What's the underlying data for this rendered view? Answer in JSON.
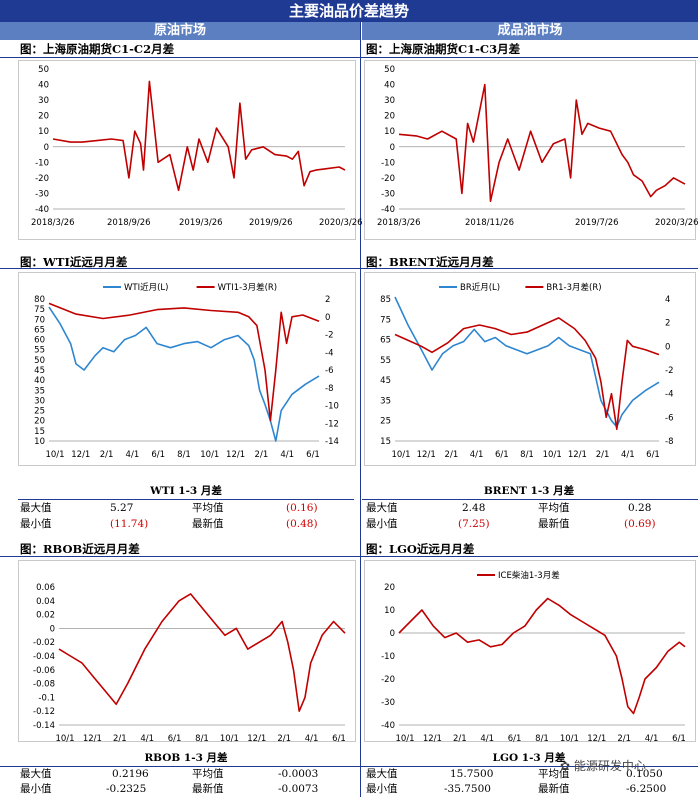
{
  "header": {
    "title": "主要油品价差趋势",
    "left": "原油市场",
    "right": "成品油市场"
  },
  "sections": {
    "s1": "图：上海原油期货C1-C2月差",
    "s2": "图：上海原油期货C1-C3月差",
    "s3": "图：WTI近远月月差",
    "s4": "图：BRENT近远月月差",
    "s5": "图：RBOB近远月月差",
    "s6": "图：LGO近远月月差"
  },
  "stats": {
    "wti": {
      "title": "WTI 1-3 月差",
      "max_label": "最大值",
      "max": "5.27",
      "min_label": "最小值",
      "min": "(11.74)",
      "avg_label": "平均值",
      "avg": "(0.16)",
      "latest_label": "最新值",
      "latest": "(0.48)"
    },
    "brent": {
      "title": "BRENT 1-3 月差",
      "max_label": "最大值",
      "max": "2.48",
      "min_label": "最小值",
      "min": "(7.25)",
      "avg_label": "平均值",
      "avg": "0.28",
      "latest_label": "最新值",
      "latest": "(0.69)"
    },
    "rbob": {
      "title": "RBOB 1-3 月差",
      "max_label": "最大值",
      "max": "0.2196",
      "min_label": "最小值",
      "min": "-0.2325",
      "avg_label": "平均值",
      "avg": "-0.0003",
      "latest_label": "最新值",
      "latest": "-0.0073"
    },
    "lgo": {
      "title": "LGO 1-3 月差",
      "max_label": "最大值",
      "max": "15.7500",
      "min_label": "最小值",
      "min": "-35.7500",
      "avg_label": "平均值",
      "avg": "0.1050",
      "latest_label": "最新值",
      "latest": "-6.2500"
    }
  },
  "watermark": "能源研发中心",
  "colors": {
    "banner": "#1f3a93",
    "subheader": "#5b7fc0",
    "red": "#c00000",
    "blue": "#2e86d0"
  },
  "chart_data": [
    {
      "id": "c1",
      "type": "line",
      "x_ticks": [
        "2018/3/26",
        "2018/9/26",
        "2019/3/26",
        "2019/9/26",
        "2020/3/26"
      ],
      "y_ticks": [
        50,
        40,
        30,
        20,
        10,
        0,
        -10,
        -20,
        -30,
        -40
      ],
      "ylim": [
        -40,
        50
      ],
      "series": [
        {
          "color": "#c00000",
          "x": [
            0,
            0.06,
            0.1,
            0.15,
            0.2,
            0.24,
            0.26,
            0.28,
            0.3,
            0.31,
            0.33,
            0.36,
            0.4,
            0.43,
            0.46,
            0.48,
            0.5,
            0.53,
            0.56,
            0.6,
            0.62,
            0.64,
            0.66,
            0.68,
            0.72,
            0.76,
            0.8,
            0.82,
            0.84,
            0.86,
            0.88,
            0.9,
            0.94,
            0.98,
            1
          ],
          "values": [
            5,
            3,
            3,
            4,
            5,
            4,
            -20,
            10,
            2,
            -15,
            42,
            -10,
            -5,
            -28,
            0,
            -15,
            5,
            -10,
            12,
            0,
            -20,
            28,
            -8,
            -2,
            0,
            -5,
            -6,
            -8,
            -3,
            -25,
            -16,
            -15,
            -14,
            -13,
            -15
          ]
        }
      ]
    },
    {
      "id": "c2",
      "type": "line",
      "x_ticks": [
        "2018/3/26",
        "2018/11/26",
        "2019/7/26",
        "2020/3/26"
      ],
      "y_ticks": [
        50,
        40,
        30,
        20,
        10,
        0,
        -10,
        -20,
        -30,
        -40
      ],
      "ylim": [
        -40,
        50
      ],
      "series": [
        {
          "color": "#c00000",
          "x": [
            0,
            0.06,
            0.1,
            0.15,
            0.2,
            0.22,
            0.24,
            0.26,
            0.3,
            0.32,
            0.35,
            0.38,
            0.42,
            0.46,
            0.5,
            0.54,
            0.58,
            0.6,
            0.62,
            0.64,
            0.66,
            0.7,
            0.74,
            0.78,
            0.8,
            0.82,
            0.85,
            0.88,
            0.9,
            0.93,
            0.96,
            1
          ],
          "values": [
            8,
            7,
            5,
            10,
            5,
            -30,
            15,
            3,
            40,
            -35,
            -10,
            5,
            -15,
            10,
            -10,
            2,
            5,
            -20,
            30,
            8,
            15,
            12,
            10,
            -5,
            -10,
            -18,
            -22,
            -32,
            -28,
            -25,
            -20,
            -24
          ]
        }
      ]
    },
    {
      "id": "c3",
      "type": "line",
      "x_ticks": [
        "10/1",
        "12/1",
        "2/1",
        "4/1",
        "6/1",
        "8/1",
        "10/1",
        "12/1",
        "2/1",
        "4/1",
        "6/1"
      ],
      "left_ticks": [
        80,
        75,
        70,
        65,
        60,
        55,
        50,
        45,
        40,
        35,
        30,
        25,
        20,
        15,
        10
      ],
      "right_ticks": [
        2,
        0,
        -2,
        -4,
        -6,
        -8,
        -10,
        -12,
        -14
      ],
      "legend": [
        "WTI近月(L)",
        "WTI1-3月差(R)"
      ],
      "series": [
        {
          "name": "WTI近月(L)",
          "axis": "left",
          "color": "#2e86d0",
          "x": [
            0,
            0.04,
            0.08,
            0.1,
            0.13,
            0.17,
            0.2,
            0.24,
            0.28,
            0.32,
            0.36,
            0.4,
            0.45,
            0.5,
            0.55,
            0.6,
            0.65,
            0.7,
            0.74,
            0.76,
            0.78,
            0.8,
            0.82,
            0.84,
            0.86,
            0.9,
            0.95,
            1
          ],
          "values": [
            76,
            68,
            58,
            48,
            45,
            52,
            56,
            54,
            60,
            62,
            66,
            58,
            56,
            58,
            59,
            56,
            60,
            62,
            57,
            50,
            35,
            28,
            20,
            10,
            25,
            33,
            38,
            42
          ]
        },
        {
          "name": "WTI1-3月差(R)",
          "axis": "right",
          "color": "#c00000",
          "x": [
            0,
            0.1,
            0.2,
            0.3,
            0.4,
            0.5,
            0.6,
            0.7,
            0.74,
            0.77,
            0.8,
            0.82,
            0.84,
            0.86,
            0.88,
            0.9,
            0.94,
            1
          ],
          "values": [
            1.5,
            0.3,
            -0.2,
            0.2,
            0.8,
            1,
            0.7,
            0.5,
            0,
            -1,
            -6,
            -11.7,
            -6,
            0.5,
            -3,
            0,
            0.2,
            -0.5
          ]
        }
      ]
    },
    {
      "id": "c4",
      "type": "line",
      "x_ticks": [
        "10/1",
        "12/1",
        "2/1",
        "4/1",
        "6/1",
        "8/1",
        "10/1",
        "12/1",
        "2/1",
        "4/1",
        "6/1"
      ],
      "left_ticks": [
        85,
        75,
        65,
        55,
        45,
        35,
        25,
        15
      ],
      "right_ticks": [
        4,
        2,
        0,
        -2,
        -4,
        -6,
        -8
      ],
      "legend": [
        "BR近月(L)",
        "BR1-3月差(R)"
      ],
      "series": [
        {
          "name": "BR近月(L)",
          "axis": "left",
          "color": "#2e86d0",
          "x": [
            0,
            0.05,
            0.1,
            0.14,
            0.18,
            0.22,
            0.26,
            0.3,
            0.34,
            0.38,
            0.42,
            0.46,
            0.5,
            0.54,
            0.58,
            0.62,
            0.66,
            0.7,
            0.74,
            0.78,
            0.8,
            0.82,
            0.84,
            0.86,
            0.9,
            0.95,
            1
          ],
          "values": [
            86,
            72,
            60,
            50,
            58,
            62,
            64,
            70,
            64,
            66,
            62,
            60,
            58,
            60,
            62,
            66,
            62,
            60,
            58,
            35,
            30,
            25,
            22,
            28,
            35,
            40,
            44
          ]
        },
        {
          "name": "BR1-3月差(R)",
          "axis": "right",
          "color": "#c00000",
          "x": [
            0,
            0.05,
            0.1,
            0.14,
            0.2,
            0.26,
            0.32,
            0.38,
            0.44,
            0.5,
            0.56,
            0.62,
            0.68,
            0.72,
            0.76,
            0.78,
            0.8,
            0.82,
            0.84,
            0.86,
            0.88,
            0.9,
            0.95,
            1
          ],
          "values": [
            1,
            0.5,
            0,
            -0.5,
            0.3,
            1.5,
            1.8,
            1.5,
            1,
            1.2,
            1.8,
            2.4,
            1.5,
            0.5,
            -1,
            -3,
            -6,
            -4,
            -7,
            -3,
            0.5,
            0,
            -0.3,
            -0.7
          ]
        }
      ]
    },
    {
      "id": "c5",
      "type": "line",
      "x_ticks": [
        "10/1",
        "12/1",
        "2/1",
        "4/1",
        "6/1",
        "8/1",
        "10/1",
        "12/1",
        "2/1",
        "4/1",
        "6/1"
      ],
      "y_ticks": [
        0.06,
        0.04,
        0.02,
        0,
        -0.02,
        -0.04,
        -0.06,
        -0.08,
        -0.1,
        -0.12,
        -0.14
      ],
      "ylim": [
        -0.14,
        0.06
      ],
      "series": [
        {
          "color": "#c00000",
          "x": [
            0,
            0.04,
            0.08,
            0.12,
            0.16,
            0.2,
            0.24,
            0.3,
            0.36,
            0.42,
            0.46,
            0.5,
            0.54,
            0.58,
            0.62,
            0.66,
            0.7,
            0.74,
            0.78,
            0.8,
            0.82,
            0.84,
            0.86,
            0.88,
            0.92,
            0.96,
            1
          ],
          "values": [
            -0.03,
            -0.04,
            -0.05,
            -0.07,
            -0.09,
            -0.11,
            -0.08,
            -0.03,
            0.01,
            0.04,
            0.05,
            0.03,
            0.01,
            -0.01,
            0,
            -0.03,
            -0.02,
            -0.01,
            0.01,
            -0.02,
            -0.06,
            -0.12,
            -0.1,
            -0.05,
            -0.01,
            0.01,
            -0.007
          ]
        }
      ]
    },
    {
      "id": "c6",
      "type": "line",
      "x_ticks": [
        "10/1",
        "12/1",
        "2/1",
        "4/1",
        "6/1",
        "8/1",
        "10/1",
        "12/1",
        "2/1",
        "4/1",
        "6/1"
      ],
      "y_ticks": [
        20,
        10,
        0,
        -10,
        -20,
        -30,
        -40
      ],
      "ylim": [
        -40,
        20
      ],
      "legend": [
        "ICE柴油1-3月差"
      ],
      "series": [
        {
          "name": "ICE柴油1-3月差",
          "color": "#c00000",
          "x": [
            0,
            0.04,
            0.08,
            0.12,
            0.16,
            0.2,
            0.24,
            0.28,
            0.32,
            0.36,
            0.4,
            0.44,
            0.48,
            0.52,
            0.56,
            0.6,
            0.64,
            0.68,
            0.72,
            0.76,
            0.78,
            0.8,
            0.82,
            0.84,
            0.86,
            0.9,
            0.94,
            0.98,
            1
          ],
          "values": [
            0,
            5,
            10,
            3,
            -2,
            0,
            -4,
            -3,
            -6,
            -5,
            0,
            3,
            10,
            15,
            12,
            8,
            5,
            2,
            -1,
            -10,
            -20,
            -32,
            -35,
            -28,
            -20,
            -15,
            -8,
            -4,
            -6
          ]
        }
      ]
    }
  ]
}
